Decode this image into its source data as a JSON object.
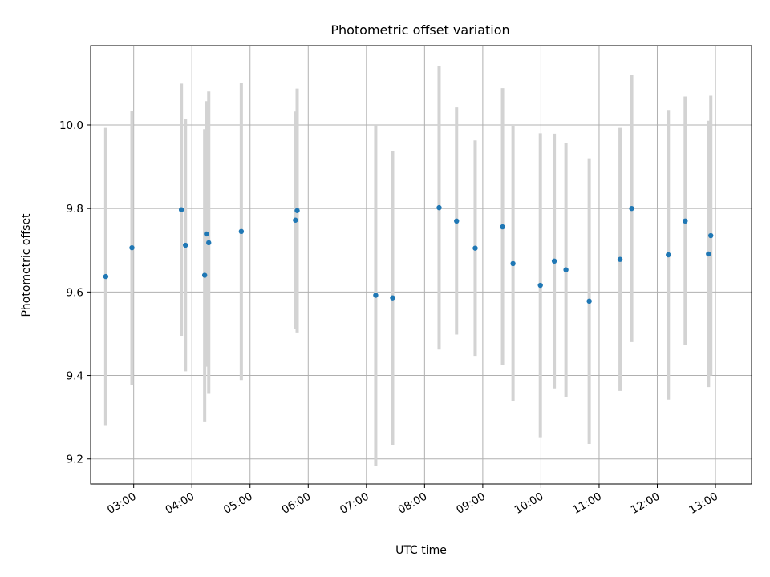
{
  "chart_data": {
    "type": "scatter",
    "title": "Photometric offset variation",
    "xlabel": "UTC time",
    "ylabel": "Photometric offset",
    "x_unit": "hours UTC",
    "xlim": [
      2.26,
      13.62
    ],
    "ylim": [
      9.14,
      10.19
    ],
    "grid": true,
    "x_ticks": [
      {
        "value": 3,
        "label": "03:00"
      },
      {
        "value": 4,
        "label": "04:00"
      },
      {
        "value": 5,
        "label": "05:00"
      },
      {
        "value": 6,
        "label": "06:00"
      },
      {
        "value": 7,
        "label": "07:00"
      },
      {
        "value": 8,
        "label": "08:00"
      },
      {
        "value": 9,
        "label": "09:00"
      },
      {
        "value": 10,
        "label": "10:00"
      },
      {
        "value": 11,
        "label": "11:00"
      },
      {
        "value": 12,
        "label": "12:00"
      },
      {
        "value": 13,
        "label": "13:00"
      }
    ],
    "y_ticks": [
      {
        "value": 9.2,
        "label": "9.2"
      },
      {
        "value": 9.4,
        "label": "9.4"
      },
      {
        "value": 9.6,
        "label": "9.6"
      },
      {
        "value": 9.8,
        "label": "9.8"
      },
      {
        "value": 10.0,
        "label": "10.0"
      }
    ],
    "series": [
      {
        "marker_color": "#1f77b4",
        "errorbar_color": "#d3d3d3",
        "points": [
          {
            "x": 2.52,
            "y": 9.637,
            "yerr": 0.356
          },
          {
            "x": 2.97,
            "y": 9.706,
            "yerr": 0.328
          },
          {
            "x": 3.82,
            "y": 9.797,
            "yerr": 0.302
          },
          {
            "x": 3.89,
            "y": 9.712,
            "yerr": 0.302
          },
          {
            "x": 4.22,
            "y": 9.64,
            "yerr": 0.35
          },
          {
            "x": 4.25,
            "y": 9.739,
            "yerr": 0.318
          },
          {
            "x": 4.29,
            "y": 9.718,
            "yerr": 0.362
          },
          {
            "x": 4.85,
            "y": 9.745,
            "yerr": 0.356
          },
          {
            "x": 5.78,
            "y": 9.772,
            "yerr": 0.26
          },
          {
            "x": 5.81,
            "y": 9.795,
            "yerr": 0.292
          },
          {
            "x": 7.16,
            "y": 9.592,
            "yerr": 0.408
          },
          {
            "x": 7.45,
            "y": 9.586,
            "yerr": 0.352
          },
          {
            "x": 8.25,
            "y": 9.802,
            "yerr": 0.34
          },
          {
            "x": 8.55,
            "y": 9.77,
            "yerr": 0.272
          },
          {
            "x": 8.87,
            "y": 9.705,
            "yerr": 0.258
          },
          {
            "x": 9.34,
            "y": 9.756,
            "yerr": 0.332
          },
          {
            "x": 9.52,
            "y": 9.668,
            "yerr": 0.33
          },
          {
            "x": 9.99,
            "y": 9.616,
            "yerr": 0.364
          },
          {
            "x": 10.23,
            "y": 9.674,
            "yerr": 0.305
          },
          {
            "x": 10.43,
            "y": 9.653,
            "yerr": 0.304
          },
          {
            "x": 10.83,
            "y": 9.578,
            "yerr": 0.342
          },
          {
            "x": 11.36,
            "y": 9.678,
            "yerr": 0.315
          },
          {
            "x": 11.56,
            "y": 9.8,
            "yerr": 0.32
          },
          {
            "x": 12.19,
            "y": 9.689,
            "yerr": 0.347
          },
          {
            "x": 12.48,
            "y": 9.77,
            "yerr": 0.298
          },
          {
            "x": 12.88,
            "y": 9.691,
            "yerr": 0.319
          },
          {
            "x": 12.92,
            "y": 9.735,
            "yerr": 0.335
          }
        ]
      }
    ]
  }
}
